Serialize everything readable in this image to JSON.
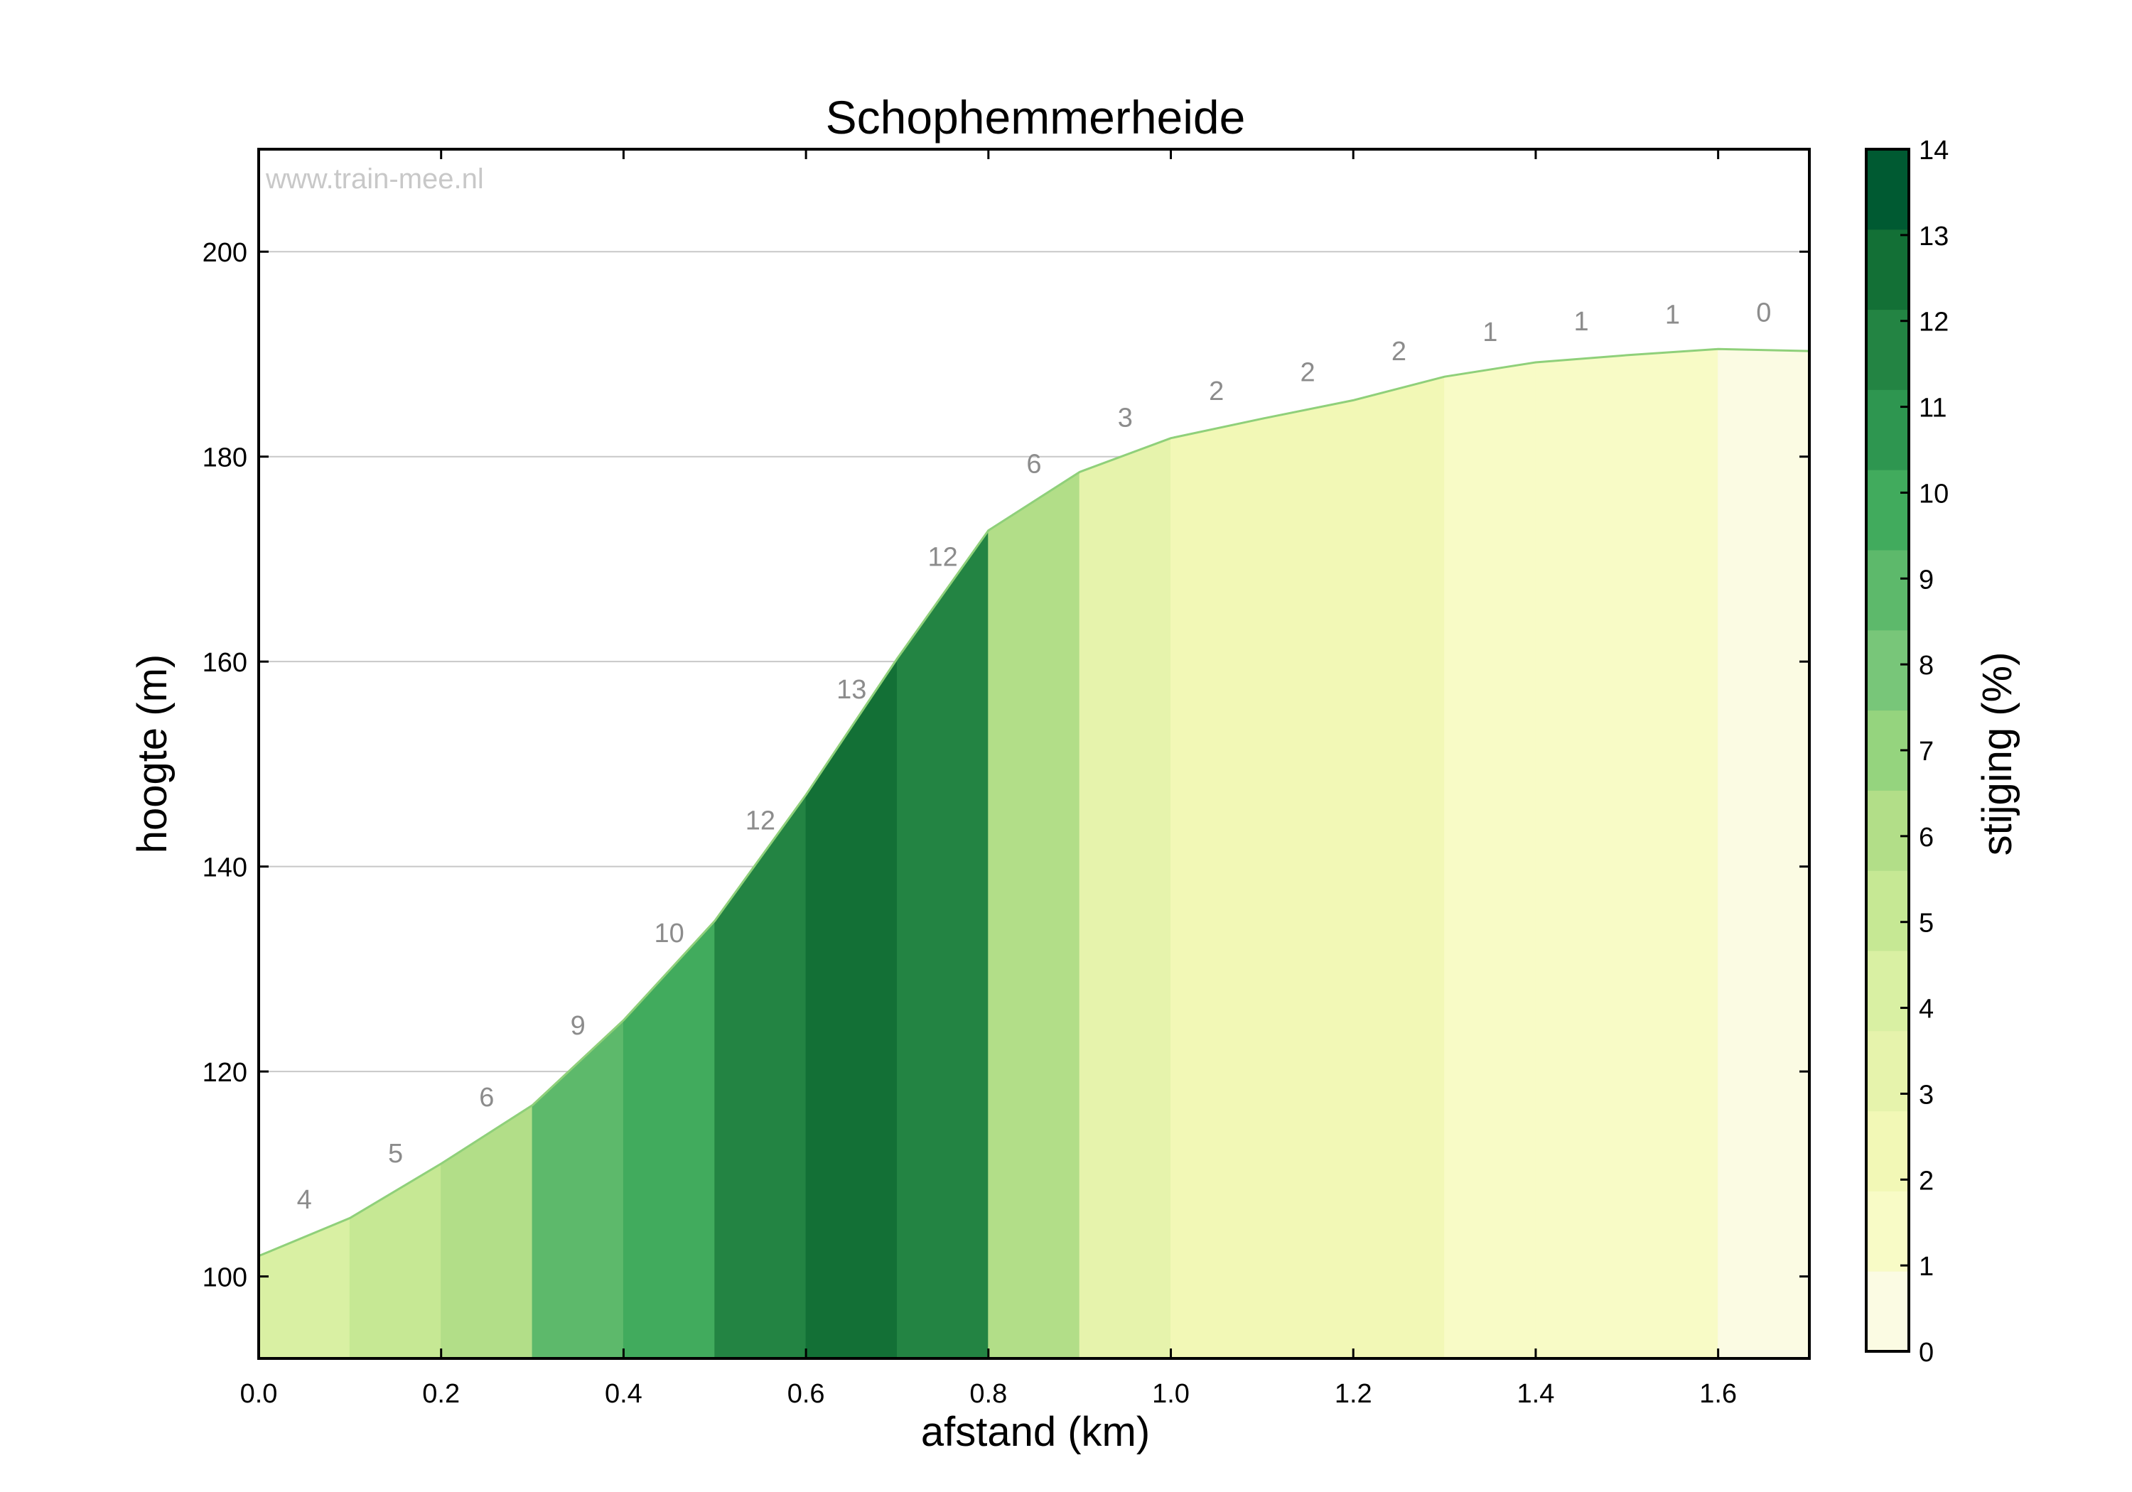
{
  "chart_data": {
    "type": "area",
    "title": "Schophemmerheide",
    "watermark": "www.train-mee.nl",
    "xlabel": "afstand (km)",
    "ylabel": "hoogte (m)",
    "xlim": [
      0.0,
      1.7
    ],
    "ylim": [
      92,
      210
    ],
    "x_ticks": [
      "0.0",
      "0.2",
      "0.4",
      "0.6",
      "0.8",
      "1.0",
      "1.2",
      "1.4",
      "1.6"
    ],
    "y_ticks": [
      "100",
      "120",
      "140",
      "160",
      "180",
      "200"
    ],
    "profile": {
      "x": [
        0.0,
        0.1,
        0.2,
        0.3,
        0.4,
        0.5,
        0.6,
        0.7,
        0.8,
        0.9,
        1.0,
        1.1,
        1.2,
        1.3,
        1.4,
        1.5,
        1.6,
        1.7
      ],
      "y": [
        102.0,
        105.7,
        111.0,
        116.7,
        125.0,
        134.7,
        147.0,
        160.3,
        172.8,
        178.5,
        181.8,
        183.7,
        185.5,
        187.8,
        189.2,
        189.9,
        190.5,
        190.3
      ]
    },
    "segments": [
      {
        "start": 0.0,
        "end": 0.1,
        "grade": "4"
      },
      {
        "start": 0.1,
        "end": 0.2,
        "grade": "5"
      },
      {
        "start": 0.2,
        "end": 0.3,
        "grade": "6"
      },
      {
        "start": 0.3,
        "end": 0.4,
        "grade": "9"
      },
      {
        "start": 0.4,
        "end": 0.5,
        "grade": "10"
      },
      {
        "start": 0.5,
        "end": 0.6,
        "grade": "12"
      },
      {
        "start": 0.6,
        "end": 0.7,
        "grade": "13"
      },
      {
        "start": 0.7,
        "end": 0.8,
        "grade": "12"
      },
      {
        "start": 0.8,
        "end": 0.9,
        "grade": "6"
      },
      {
        "start": 0.9,
        "end": 1.0,
        "grade": "3"
      },
      {
        "start": 1.0,
        "end": 1.1,
        "grade": "2"
      },
      {
        "start": 1.1,
        "end": 1.2,
        "grade": "2"
      },
      {
        "start": 1.2,
        "end": 1.3,
        "grade": "2"
      },
      {
        "start": 1.3,
        "end": 1.4,
        "grade": "1"
      },
      {
        "start": 1.4,
        "end": 1.5,
        "grade": "1"
      },
      {
        "start": 1.5,
        "end": 1.6,
        "grade": "1"
      },
      {
        "start": 1.6,
        "end": 1.7,
        "grade": "0"
      }
    ],
    "colorbar": {
      "label": "stijging (%)",
      "min": 0,
      "max": 14,
      "ticks": [
        "0",
        "1",
        "2",
        "3",
        "4",
        "5",
        "6",
        "7",
        "8",
        "9",
        "10",
        "11",
        "12",
        "13",
        "14"
      ],
      "colors": [
        "#fbfbe3",
        "#f8fbc6",
        "#f2f8b6",
        "#e6f3ac",
        "#d9f0a3",
        "#c6e894",
        "#b2de88",
        "#95d47e",
        "#78c679",
        "#5db96b",
        "#41ab5d",
        "#2e9650",
        "#238443",
        "#137036",
        "#005a32"
      ]
    }
  }
}
